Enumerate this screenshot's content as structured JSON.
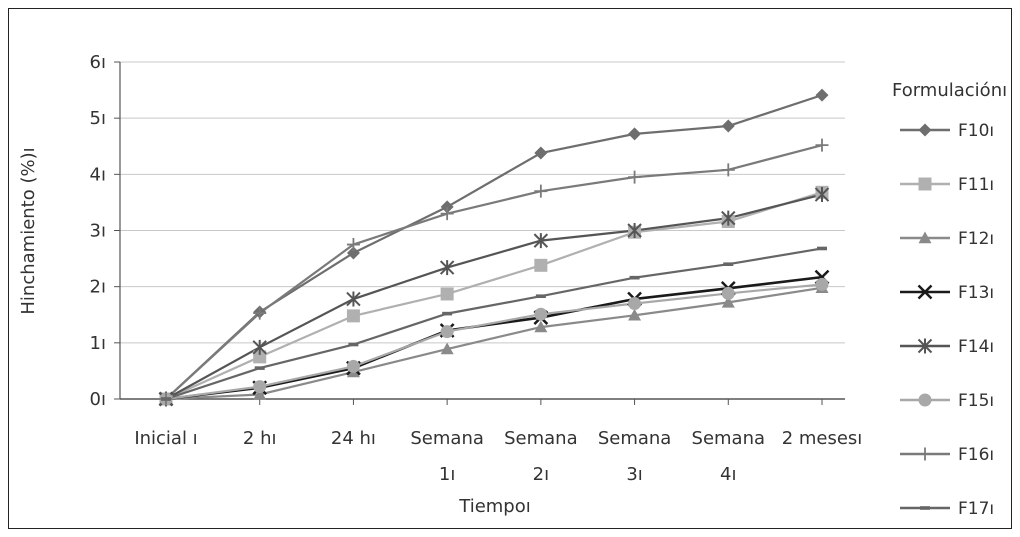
{
  "chart_data": {
    "type": "line",
    "xlabel": "Tiempoı",
    "ylabel": "Hinchamiento (%)ı",
    "ylim": [
      0,
      6
    ],
    "yticks": [
      "0ı",
      "1ı",
      "2ı",
      "3ı",
      "4ı",
      "5ı",
      "6ı"
    ],
    "categories": [
      [
        "Inicial ı"
      ],
      [
        "2 hı"
      ],
      [
        "24 hı"
      ],
      [
        "Semana",
        "1ı"
      ],
      [
        "Semana",
        "2ı"
      ],
      [
        "Semana",
        "3ı"
      ],
      [
        "Semana",
        "4ı"
      ],
      [
        "2 mesesı"
      ]
    ],
    "legend_title": "Formulaciónı",
    "legend_position": "right",
    "grid": "horizontal",
    "series": [
      {
        "name": "F10ı",
        "marker": "diamond",
        "color": "#6e6e6e",
        "values": [
          0,
          1.55,
          2.6,
          3.42,
          4.38,
          4.72,
          4.86,
          5.41
        ]
      },
      {
        "name": "F11ı",
        "marker": "square",
        "color": "#b0b0b0",
        "values": [
          0,
          0.75,
          1.48,
          1.87,
          2.38,
          2.97,
          3.16,
          3.68
        ]
      },
      {
        "name": "F12ı",
        "marker": "triangle",
        "color": "#8a8a8a",
        "values": [
          0,
          0.08,
          0.48,
          0.89,
          1.28,
          1.49,
          1.72,
          1.98
        ]
      },
      {
        "name": "F13ı",
        "marker": "x",
        "color": "#1a1a1a",
        "values": [
          0,
          0.2,
          0.55,
          1.22,
          1.45,
          1.78,
          1.97,
          2.17
        ]
      },
      {
        "name": "F14ı",
        "marker": "star",
        "color": "#555555",
        "values": [
          0,
          0.92,
          1.78,
          2.34,
          2.82,
          3.0,
          3.22,
          3.64
        ]
      },
      {
        "name": "F15ı",
        "marker": "circle",
        "color": "#a8a8a8",
        "values": [
          0,
          0.22,
          0.58,
          1.2,
          1.51,
          1.7,
          1.88,
          2.04
        ]
      },
      {
        "name": "F16ı",
        "marker": "plus",
        "color": "#7a7a7a",
        "values": [
          0,
          1.53,
          2.75,
          3.3,
          3.7,
          3.95,
          4.08,
          4.52
        ]
      },
      {
        "name": "F17ı",
        "marker": "dash",
        "color": "#666666",
        "values": [
          0,
          0.55,
          0.97,
          1.52,
          1.83,
          2.16,
          2.4,
          2.68
        ]
      }
    ]
  }
}
